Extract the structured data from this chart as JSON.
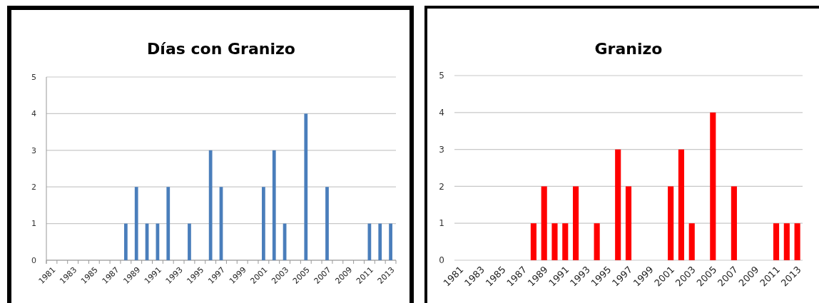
{
  "chart_data": [
    {
      "type": "bar",
      "title": "Días con Granizo",
      "categories": [
        "1981",
        null,
        "1983",
        null,
        "1985",
        null,
        "1987",
        null,
        "1989",
        null,
        "1991",
        null,
        "1993",
        null,
        "1995",
        null,
        "1997",
        null,
        "1999",
        null,
        "2001",
        null,
        "2003",
        null,
        "2005",
        null,
        "2007",
        null,
        "2009",
        null,
        "2011",
        null,
        "2013"
      ],
      "values": [
        0,
        0,
        0,
        0,
        0,
        0,
        0,
        1,
        2,
        1,
        1,
        2,
        0,
        1,
        0,
        3,
        2,
        0,
        0,
        0,
        2,
        3,
        1,
        0,
        4,
        0,
        2,
        0,
        0,
        0,
        1,
        1,
        1
      ],
      "color": "#4a7ebb",
      "ylim": [
        0,
        5
      ],
      "yticks": [
        0,
        1,
        2,
        3,
        4,
        5
      ],
      "grid": "y"
    },
    {
      "type": "bar",
      "title": "Granizo",
      "categories": [
        "1981",
        null,
        "1983",
        null,
        "1985",
        null,
        "1987",
        null,
        "1989",
        null,
        "1991",
        null,
        "1993",
        null,
        "1995",
        null,
        "1997",
        null,
        "1999",
        null,
        "2001",
        null,
        "2003",
        null,
        "2005",
        null,
        "2007",
        null,
        "2009",
        null,
        "2011",
        null,
        "2013"
      ],
      "values": [
        0,
        0,
        0,
        0,
        0,
        0,
        0,
        1,
        2,
        1,
        1,
        2,
        0,
        1,
        0,
        3,
        2,
        0,
        0,
        0,
        2,
        3,
        1,
        0,
        4,
        0,
        2,
        0,
        0,
        0,
        1,
        1,
        1
      ],
      "color": "#ff0000",
      "ylim": [
        0,
        5
      ],
      "yticks": [
        0,
        1,
        2,
        3,
        4,
        5
      ],
      "grid": "y"
    }
  ]
}
